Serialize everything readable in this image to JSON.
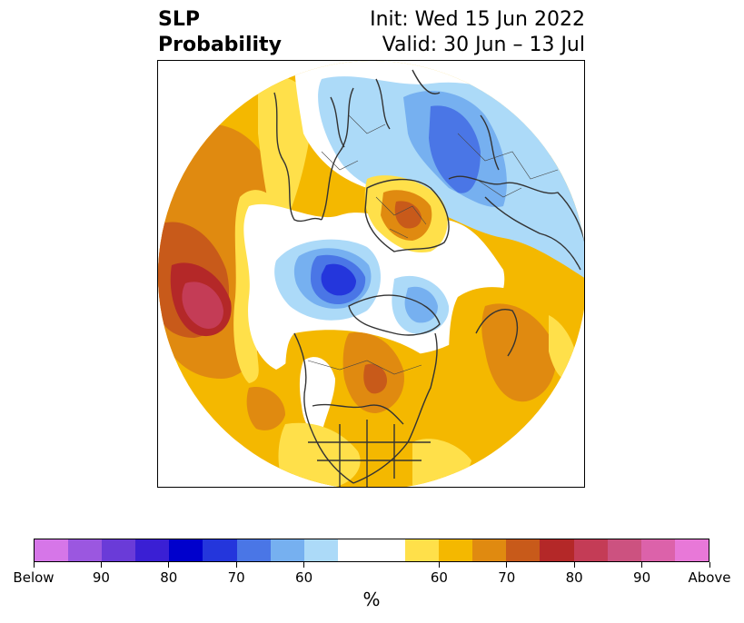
{
  "title": {
    "left_line1": "SLP",
    "left_line2": "Probability",
    "right_line1": "Init: Wed 15 Jun 2022",
    "right_line2": "Valid: 30 Jun – 13 Jul"
  },
  "colorbar": {
    "colors": [
      "#d676e8",
      "#9b57e0",
      "#6a3bd8",
      "#3a1fd4",
      "#0000cc",
      "#2436dc",
      "#4a76e6",
      "#76b0f0",
      "#acdaf8",
      "#ffffff",
      "#ffffff",
      "#ffe04a",
      "#f4b800",
      "#e08a10",
      "#c85a1a",
      "#b42828",
      "#c43c56",
      "#cc5280",
      "#dc62aa",
      "#e878d8"
    ],
    "tick_labels": [
      "Below",
      "90",
      "80",
      "70",
      "60",
      "60",
      "70",
      "80",
      "90",
      "Above"
    ],
    "unit": "%"
  }
}
